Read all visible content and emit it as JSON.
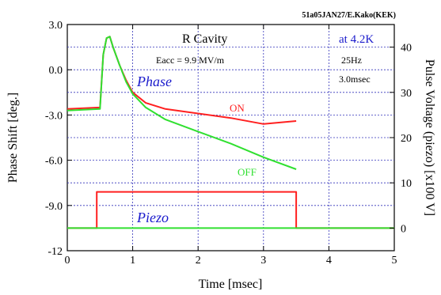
{
  "header": "51a05JAN27/E.Kako(KEK)",
  "chart_data": {
    "type": "line",
    "xlabel": "Time   [msec]",
    "ylabel": "Phase Shift   [deg.]",
    "y2label": "Pulse Voltage (piezo)   [x100 V]",
    "xlim": [
      0,
      5
    ],
    "ylim": [
      -12,
      3
    ],
    "y2lim": [
      -5,
      45
    ],
    "xticks": [
      "0",
      "1",
      "2",
      "3",
      "4",
      "5"
    ],
    "yticks": [
      "3.0",
      "0.0",
      "-3.0",
      "-6.0",
      "-9.0",
      "-12"
    ],
    "y2ticks": [
      "0",
      "10",
      "20",
      "30",
      "40"
    ],
    "grid": true,
    "annotations": {
      "cavity": "R Cavity",
      "temp": "at 4.2K",
      "eacc": "Eacc = 9.9 MV/m",
      "rate": "25Hz",
      "width": "3.0msec",
      "phase": "Phase",
      "piezo": "Piezo",
      "on": "ON",
      "off": "OFF"
    },
    "series": [
      {
        "name": "ON",
        "color": "#ff2020",
        "axis": "y1",
        "x": [
          0,
          0.5,
          0.5,
          0.55,
          0.6,
          0.65,
          0.7,
          0.8,
          0.9,
          1.0,
          1.2,
          1.5,
          2.0,
          2.5,
          3.0,
          3.5
        ],
        "y": [
          -2.6,
          -2.5,
          -2.5,
          1.0,
          2.1,
          2.2,
          1.5,
          0.3,
          -0.7,
          -1.5,
          -2.2,
          -2.6,
          -2.9,
          -3.2,
          -3.6,
          -3.4
        ]
      },
      {
        "name": "OFF",
        "color": "#30e030",
        "axis": "y1",
        "x": [
          0,
          0.5,
          0.5,
          0.55,
          0.6,
          0.65,
          0.7,
          0.8,
          0.9,
          1.0,
          1.2,
          1.5,
          2.0,
          2.5,
          3.0,
          3.5
        ],
        "y": [
          -2.7,
          -2.6,
          -2.6,
          1.0,
          2.1,
          2.2,
          1.5,
          0.3,
          -0.8,
          -1.6,
          -2.5,
          -3.3,
          -4.1,
          -4.9,
          -5.8,
          -6.6
        ]
      },
      {
        "name": "Piezo",
        "color": "#ff2020",
        "axis": "y2",
        "x": [
          0,
          0.45,
          0.45,
          3.5,
          3.5,
          5
        ],
        "y": [
          0,
          0,
          8,
          8,
          0,
          0
        ]
      },
      {
        "name": "Piezo OFF baseline",
        "color": "#30e030",
        "axis": "y2",
        "x": [
          0,
          5
        ],
        "y": [
          0,
          0
        ]
      }
    ]
  }
}
